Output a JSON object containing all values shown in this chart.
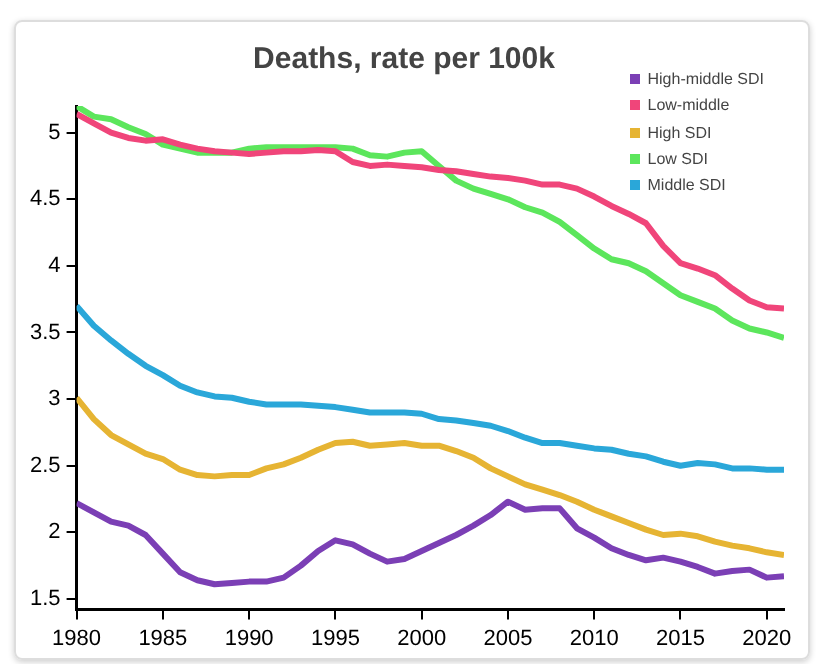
{
  "chart_data": {
    "type": "line",
    "title": "Deaths, rate per 100k",
    "x": [
      1980,
      1981,
      1982,
      1983,
      1984,
      1985,
      1986,
      1987,
      1988,
      1989,
      1990,
      1991,
      1992,
      1993,
      1994,
      1995,
      1996,
      1997,
      1998,
      1999,
      2000,
      2001,
      2002,
      2003,
      2004,
      2005,
      2006,
      2007,
      2008,
      2009,
      2010,
      2011,
      2012,
      2013,
      2014,
      2015,
      2016,
      2017,
      2018,
      2019,
      2020,
      2021
    ],
    "series": [
      {
        "name": "High-middle SDI",
        "color": "#7b3fb5",
        "values": [
          2.22,
          2.15,
          2.08,
          2.05,
          1.98,
          1.84,
          1.7,
          1.64,
          1.61,
          1.62,
          1.63,
          1.63,
          1.66,
          1.75,
          1.86,
          1.94,
          1.91,
          1.84,
          1.78,
          1.8,
          1.86,
          1.92,
          1.98,
          2.05,
          2.13,
          2.23,
          2.17,
          2.18,
          2.18,
          2.03,
          1.96,
          1.88,
          1.83,
          1.79,
          1.81,
          1.78,
          1.74,
          1.69,
          1.71,
          1.72,
          1.66,
          1.67
        ]
      },
      {
        "name": "Low-middle",
        "color": "#f0457a",
        "values": [
          5.14,
          5.07,
          5.0,
          4.96,
          4.94,
          4.95,
          4.91,
          4.88,
          4.86,
          4.85,
          4.84,
          4.85,
          4.86,
          4.86,
          4.87,
          4.86,
          4.78,
          4.75,
          4.76,
          4.75,
          4.74,
          4.72,
          4.71,
          4.69,
          4.67,
          4.66,
          4.64,
          4.61,
          4.61,
          4.58,
          4.52,
          4.45,
          4.39,
          4.32,
          4.15,
          4.02,
          3.98,
          3.93,
          3.83,
          3.74,
          3.69,
          3.68
        ]
      },
      {
        "name": "High SDI",
        "color": "#e6b433",
        "values": [
          3.01,
          2.85,
          2.73,
          2.66,
          2.59,
          2.55,
          2.47,
          2.43,
          2.42,
          2.43,
          2.43,
          2.48,
          2.51,
          2.56,
          2.62,
          2.67,
          2.68,
          2.65,
          2.66,
          2.67,
          2.65,
          2.65,
          2.61,
          2.56,
          2.48,
          2.42,
          2.36,
          2.32,
          2.28,
          2.23,
          2.17,
          2.12,
          2.07,
          2.02,
          1.98,
          1.99,
          1.97,
          1.93,
          1.9,
          1.88,
          1.85,
          1.83
        ]
      },
      {
        "name": "Low SDI",
        "color": "#5ce65c",
        "values": [
          5.2,
          5.12,
          5.1,
          5.04,
          4.99,
          4.91,
          4.88,
          4.85,
          4.85,
          4.85,
          4.88,
          4.89,
          4.89,
          4.89,
          4.89,
          4.89,
          4.88,
          4.83,
          4.82,
          4.85,
          4.86,
          4.75,
          4.64,
          4.58,
          4.54,
          4.5,
          4.44,
          4.4,
          4.33,
          4.23,
          4.13,
          4.05,
          4.02,
          3.96,
          3.87,
          3.78,
          3.73,
          3.68,
          3.59,
          3.53,
          3.5,
          3.46
        ]
      },
      {
        "name": "Middle SDI",
        "color": "#2aa7d9",
        "values": [
          3.7,
          3.55,
          3.44,
          3.34,
          3.25,
          3.18,
          3.1,
          3.05,
          3.02,
          3.01,
          2.98,
          2.96,
          2.96,
          2.96,
          2.95,
          2.94,
          2.92,
          2.9,
          2.9,
          2.9,
          2.89,
          2.85,
          2.84,
          2.82,
          2.8,
          2.76,
          2.71,
          2.67,
          2.67,
          2.65,
          2.63,
          2.62,
          2.59,
          2.57,
          2.53,
          2.5,
          2.52,
          2.51,
          2.48,
          2.48,
          2.47,
          2.47
        ]
      }
    ],
    "xlim": [
      1980,
      2021
    ],
    "xticks": [
      1980,
      1985,
      1990,
      1995,
      2000,
      2005,
      2010,
      2015,
      2020
    ],
    "ylim": [
      1.42,
      5.2
    ],
    "yticks": [
      1.5,
      2,
      2.5,
      3,
      3.5,
      4,
      4.5,
      5
    ],
    "grid": false,
    "legend": "top right",
    "marker": "none",
    "line_style": "solid"
  }
}
